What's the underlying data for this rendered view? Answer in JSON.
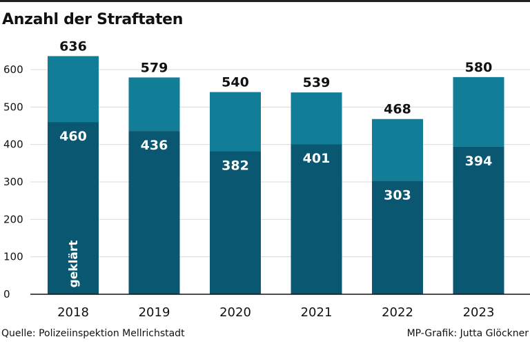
{
  "chart_data": {
    "type": "bar",
    "stacked": true,
    "title": "Anzahl der Straftaten",
    "categories": [
      "2018",
      "2019",
      "2020",
      "2021",
      "2022",
      "2023"
    ],
    "totals": [
      636,
      579,
      540,
      539,
      468,
      580
    ],
    "series": [
      {
        "name": "geklärt",
        "values": [
          460,
          436,
          382,
          401,
          303,
          394
        ]
      }
    ],
    "ylim": [
      0,
      600
    ],
    "yticks": [
      0,
      100,
      200,
      300,
      400,
      500,
      600
    ],
    "grid": true,
    "colors": {
      "cleared": "#095771",
      "total": "#127d97",
      "grid": "#d9d9d9",
      "text": "#111111"
    }
  },
  "footer": {
    "source": "Quelle: Polizeiinspektion Mellrichstadt",
    "credit": "MP-Grafik: Jutta Glöckner"
  }
}
